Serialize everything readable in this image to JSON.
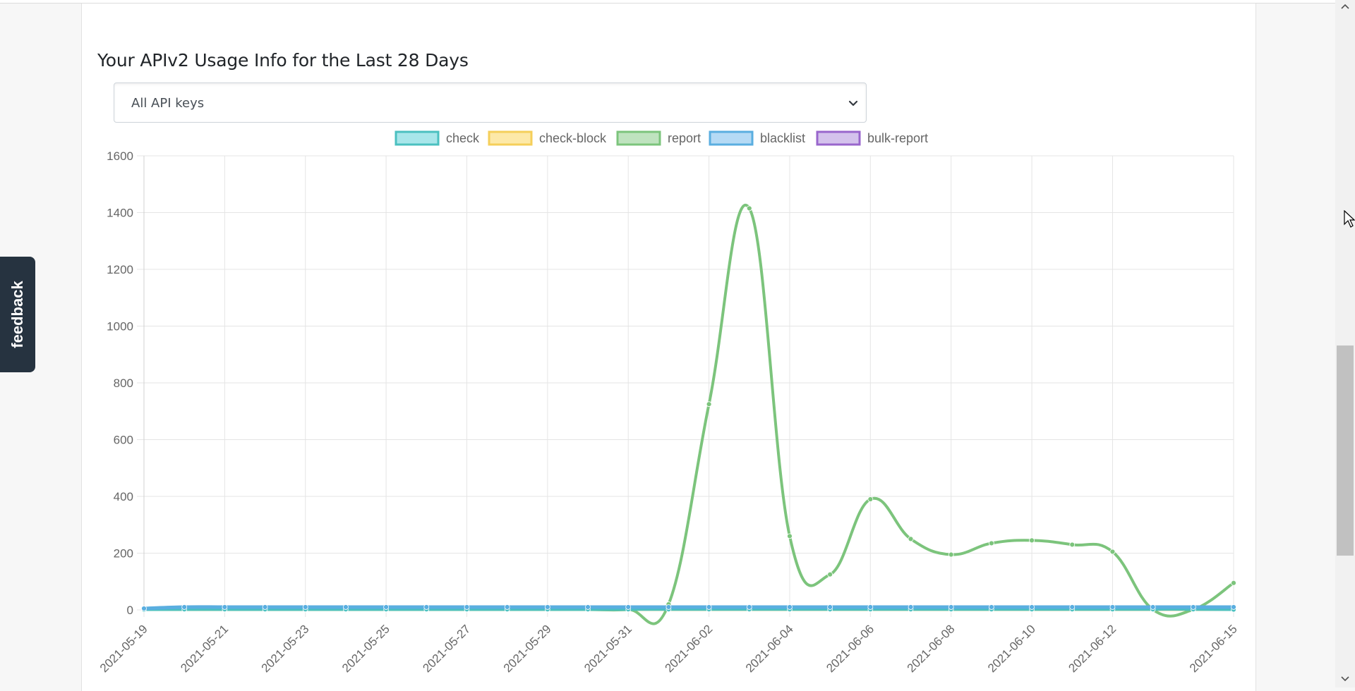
{
  "page": {
    "title": "Your APIv2 Usage Info for the Last 28 Days",
    "feedback_label": "feedback"
  },
  "key_select": {
    "selected": "All API keys"
  },
  "colors": {
    "check": "#4bc0c0",
    "check-block": "#ffcd56",
    "report": "#7cc47c",
    "blacklist": "#5aaee0",
    "bulk-report": "#9966cc",
    "grid": "#e5e5e5",
    "tick_text": "#666666",
    "feedback_bg": "#263340"
  },
  "chart_data": {
    "type": "line",
    "legend_position": "top",
    "grid": true,
    "ylim": [
      0,
      1600
    ],
    "yticks": [
      0,
      200,
      400,
      600,
      800,
      1000,
      1200,
      1400,
      1600
    ],
    "x": [
      "2021-05-19",
      "2021-05-20",
      "2021-05-21",
      "2021-05-22",
      "2021-05-23",
      "2021-05-24",
      "2021-05-25",
      "2021-05-26",
      "2021-05-27",
      "2021-05-28",
      "2021-05-29",
      "2021-05-30",
      "2021-05-31",
      "2021-06-01",
      "2021-06-02",
      "2021-06-03",
      "2021-06-04",
      "2021-06-05",
      "2021-06-06",
      "2021-06-07",
      "2021-06-08",
      "2021-06-09",
      "2021-06-10",
      "2021-06-11",
      "2021-06-12",
      "2021-06-13",
      "2021-06-14",
      "2021-06-15"
    ],
    "x_tick_labels": [
      "2021-05-19",
      "2021-05-21",
      "2021-05-23",
      "2021-05-25",
      "2021-05-27",
      "2021-05-29",
      "2021-05-31",
      "2021-06-02",
      "2021-06-04",
      "2021-06-06",
      "2021-06-08",
      "2021-06-10",
      "2021-06-12",
      "2021-06-15"
    ],
    "series": [
      {
        "name": "check",
        "color": "#4bc0c0",
        "fill": "#a8e6ea",
        "values": [
          0,
          2,
          2,
          2,
          2,
          2,
          2,
          2,
          2,
          2,
          2,
          2,
          2,
          2,
          2,
          2,
          2,
          2,
          2,
          2,
          2,
          2,
          2,
          2,
          2,
          2,
          2,
          0
        ]
      },
      {
        "name": "check-block",
        "color": "#f5cf5a",
        "fill": "#fde9a8",
        "values": [
          0,
          0,
          0,
          0,
          0,
          0,
          0,
          0,
          0,
          0,
          0,
          0,
          0,
          0,
          0,
          0,
          0,
          0,
          0,
          0,
          0,
          0,
          0,
          0,
          0,
          0,
          0,
          0
        ]
      },
      {
        "name": "report",
        "color": "#7cc47c",
        "fill": "#bfe3bf",
        "values": [
          0,
          0,
          0,
          0,
          0,
          0,
          0,
          0,
          0,
          0,
          0,
          0,
          0,
          20,
          725,
          1415,
          260,
          125,
          390,
          250,
          195,
          235,
          245,
          230,
          205,
          0,
          0,
          95
        ]
      },
      {
        "name": "blacklist",
        "color": "#5aaee0",
        "fill": "#b5daf5",
        "values": [
          5,
          10,
          10,
          10,
          10,
          10,
          10,
          10,
          10,
          10,
          10,
          10,
          10,
          10,
          10,
          10,
          10,
          10,
          10,
          10,
          10,
          10,
          10,
          10,
          10,
          10,
          10,
          10
        ]
      },
      {
        "name": "bulk-report",
        "color": "#9966cc",
        "fill": "#d4c2ec",
        "values": [
          0,
          0,
          0,
          0,
          0,
          0,
          0,
          0,
          0,
          0,
          0,
          0,
          0,
          0,
          0,
          0,
          0,
          0,
          0,
          0,
          0,
          0,
          0,
          0,
          0,
          0,
          0,
          0
        ]
      }
    ]
  }
}
